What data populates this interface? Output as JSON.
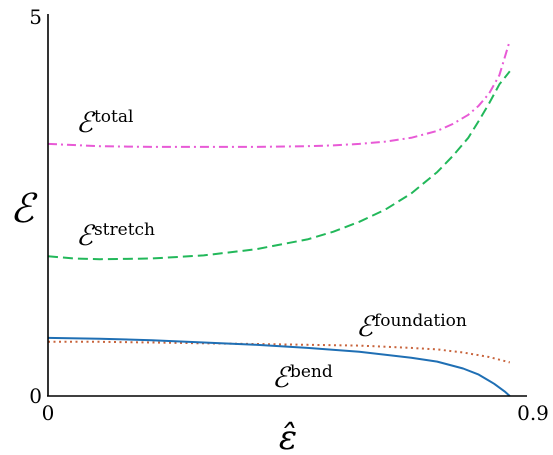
{
  "chart_data": {
    "type": "line",
    "xlim": [
      0,
      0.9
    ],
    "ylim": [
      0,
      5
    ],
    "xticks": [
      "0",
      "0.9"
    ],
    "yticks": [
      "0",
      "5"
    ],
    "xlabel": "ε̂",
    "ylabel": "ℰ",
    "grid": false,
    "legend": "inline labels next to curves",
    "series": [
      {
        "name": "total",
        "label_base": "ℰ",
        "label_sup": "total",
        "color": "#e85ad6",
        "dash": "dashdot",
        "x": [
          0,
          0.1,
          0.2,
          0.3,
          0.4,
          0.5,
          0.55,
          0.6,
          0.65,
          0.7,
          0.75,
          0.78,
          0.81,
          0.83,
          0.85,
          0.87,
          0.89
        ],
        "y": [
          3.3,
          3.27,
          3.26,
          3.26,
          3.26,
          3.27,
          3.28,
          3.3,
          3.33,
          3.38,
          3.47,
          3.56,
          3.68,
          3.8,
          3.96,
          4.2,
          4.65
        ]
      },
      {
        "name": "stretch",
        "label_base": "ℰ",
        "label_sup": "stretch",
        "color": "#22b85a",
        "dash": "dashed",
        "x": [
          0,
          0.05,
          0.1,
          0.2,
          0.3,
          0.4,
          0.5,
          0.55,
          0.6,
          0.65,
          0.7,
          0.75,
          0.78,
          0.81,
          0.83,
          0.85,
          0.87,
          0.89
        ],
        "y": [
          1.83,
          1.8,
          1.79,
          1.8,
          1.84,
          1.92,
          2.05,
          2.15,
          2.28,
          2.44,
          2.65,
          2.93,
          3.14,
          3.38,
          3.6,
          3.83,
          4.08,
          4.25
        ]
      },
      {
        "name": "foundation",
        "label_base": "ℰ",
        "label_sup": "foundation",
        "color": "#c8643c",
        "dash": "dotted",
        "x": [
          0,
          0.1,
          0.2,
          0.3,
          0.4,
          0.5,
          0.6,
          0.7,
          0.75,
          0.8,
          0.85,
          0.89
        ],
        "y": [
          0.71,
          0.71,
          0.7,
          0.69,
          0.68,
          0.67,
          0.66,
          0.63,
          0.61,
          0.57,
          0.51,
          0.44
        ]
      },
      {
        "name": "bend",
        "label_base": "ℰ",
        "label_sup": "bend",
        "color": "#1f6fb4",
        "dash": "solid",
        "x": [
          0,
          0.1,
          0.2,
          0.3,
          0.4,
          0.5,
          0.6,
          0.7,
          0.75,
          0.8,
          0.83,
          0.86,
          0.88,
          0.89
        ],
        "y": [
          0.76,
          0.75,
          0.73,
          0.7,
          0.67,
          0.63,
          0.58,
          0.5,
          0.45,
          0.36,
          0.28,
          0.16,
          0.06,
          0.0
        ]
      }
    ]
  }
}
